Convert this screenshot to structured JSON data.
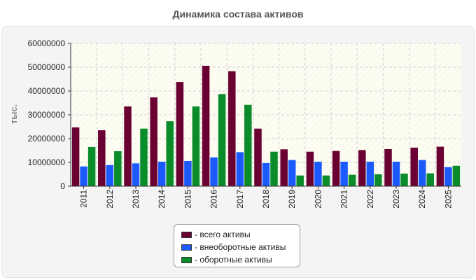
{
  "chart_data": {
    "type": "bar",
    "title": "Динамика состава активов",
    "ylabel": "тыс.",
    "xlabel": "",
    "ylim": [
      0,
      60000000
    ],
    "yticks": [
      "0",
      "10000000",
      "20000000",
      "30000000",
      "40000000",
      "50000000",
      "60000000"
    ],
    "ytick_values": [
      0,
      10000000,
      20000000,
      30000000,
      40000000,
      50000000,
      60000000
    ],
    "grid": true,
    "legend_position": "bottom",
    "categories": [
      "2011",
      "2012",
      "2013",
      "2014",
      "2015",
      "2016",
      "2017",
      "2018",
      "2019",
      "2020",
      "2021",
      "2022",
      "2023",
      "2024",
      "2025"
    ],
    "series": [
      {
        "name": "- всего активы",
        "color": "#6b0033",
        "values": [
          24700000,
          23500000,
          33500000,
          37300000,
          43800000,
          50600000,
          48300000,
          24200000,
          15500000,
          14500000,
          14800000,
          15200000,
          15600000,
          16200000,
          16600000
        ]
      },
      {
        "name": "- внеоборотные активы",
        "color": "#1a5aff",
        "values": [
          8300000,
          8900000,
          9600000,
          10300000,
          10600000,
          12100000,
          14300000,
          9700000,
          11000000,
          10300000,
          10300000,
          10300000,
          10300000,
          11000000,
          8000000
        ]
      },
      {
        "name": "- оборотные активы",
        "color": "#0a8c2a",
        "values": [
          16500000,
          14700000,
          24200000,
          27300000,
          33500000,
          38700000,
          34200000,
          14500000,
          4500000,
          4500000,
          4800000,
          5000000,
          5300000,
          5400000,
          8600000
        ]
      }
    ]
  }
}
